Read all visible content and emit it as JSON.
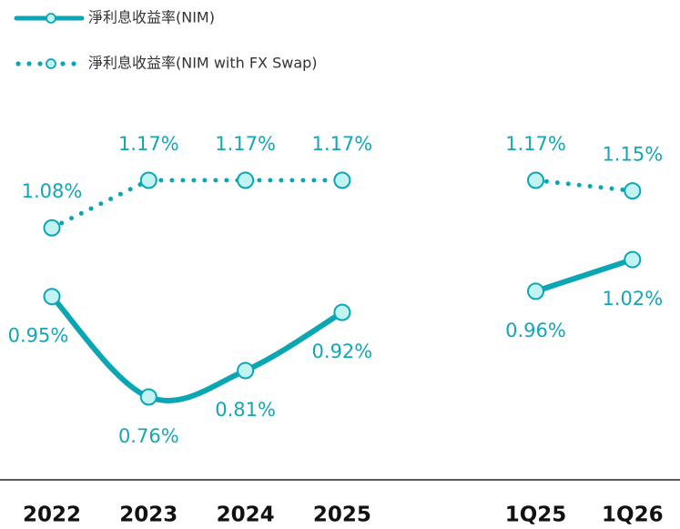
{
  "chart_data": {
    "type": "line",
    "categories": [
      "2022",
      "2023",
      "2024",
      "2025",
      null,
      "1Q25",
      "1Q26"
    ],
    "series": [
      {
        "name": "淨利息收益率(NIM)",
        "color": "#0aa6b4",
        "style": "solid",
        "values": [
          0.95,
          0.76,
          0.81,
          0.92,
          null,
          0.96,
          1.02
        ],
        "value_labels": [
          "0.95%",
          "0.76%",
          "0.81%",
          "0.92%",
          null,
          "0.96%",
          "1.02%"
        ]
      },
      {
        "name": "淨利息收益率(NIM with FX Swap)",
        "color": "#0aa6b4",
        "style": "dotted",
        "values": [
          1.08,
          1.17,
          1.17,
          1.17,
          null,
          1.17,
          1.15
        ],
        "value_labels": [
          "1.08%",
          "1.17%",
          "1.17%",
          "1.17%",
          null,
          "1.17%",
          "1.15%"
        ]
      }
    ],
    "legend": "top-left"
  }
}
